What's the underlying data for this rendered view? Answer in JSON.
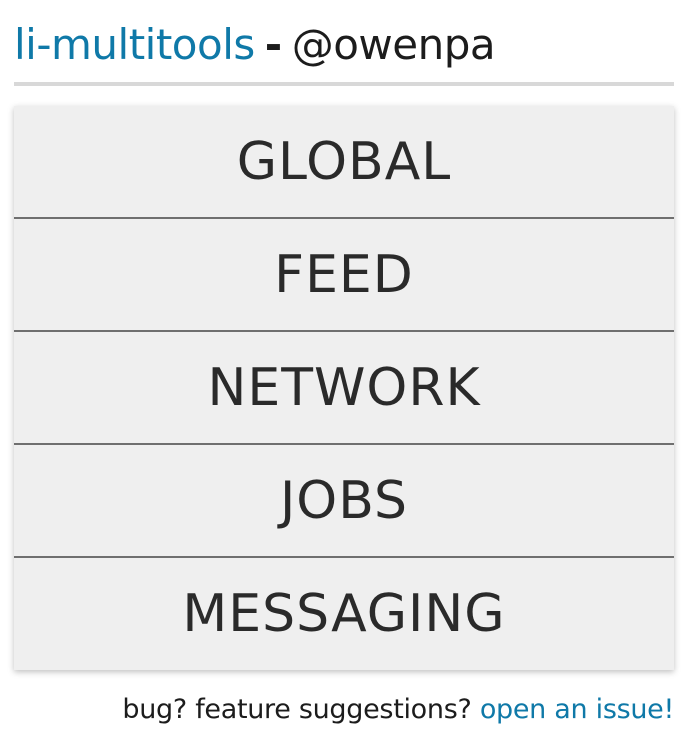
{
  "header": {
    "app_name": "li-multitools",
    "separator": "-",
    "user_handle": "@owenpa"
  },
  "menu": {
    "items": [
      {
        "label": "GLOBAL"
      },
      {
        "label": "FEED"
      },
      {
        "label": "NETWORK"
      },
      {
        "label": "JOBS"
      },
      {
        "label": "MESSAGING"
      }
    ]
  },
  "footer": {
    "prompt": "bug? feature suggestions?",
    "link_text": "open an issue!"
  },
  "colors": {
    "link": "#0f79a8",
    "text": "#1c1c1c",
    "menu_background": "#efefef",
    "divider": "#6f6f6f"
  }
}
